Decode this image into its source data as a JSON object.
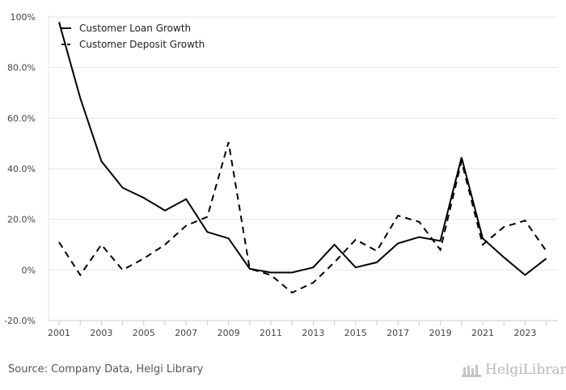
{
  "chart_data": {
    "type": "line",
    "title": "",
    "xlabel": "",
    "ylabel": "",
    "ylim": [
      -20,
      100
    ],
    "y_ticks": [
      -20,
      0,
      20,
      40,
      60,
      80,
      100
    ],
    "y_tick_labels": [
      "-20.0%",
      "0%",
      "20.0%",
      "40.0%",
      "60.0%",
      "80.0%",
      "100%"
    ],
    "x": [
      2001,
      2002,
      2003,
      2004,
      2005,
      2006,
      2007,
      2008,
      2009,
      2010,
      2011,
      2012,
      2013,
      2014,
      2015,
      2016,
      2017,
      2018,
      2019,
      2020,
      2021,
      2022,
      2023,
      2024
    ],
    "x_tick_labels": [
      "2001",
      "2003",
      "2005",
      "2007",
      "2009",
      "2011",
      "2013",
      "2015",
      "2017",
      "2019",
      "2021",
      "2023"
    ],
    "legend_position": "top-left",
    "grid": true,
    "series": [
      {
        "name": "Customer Loan Growth",
        "style": "solid",
        "color": "#000000",
        "values": [
          98.0,
          68.0,
          43.0,
          32.5,
          28.5,
          23.5,
          28.0,
          15.0,
          12.5,
          0.5,
          -1.0,
          -1.0,
          1.0,
          10.0,
          1.0,
          3.0,
          10.5,
          13.0,
          11.5,
          44.5,
          12.5,
          5.0,
          -2.0,
          4.5
        ]
      },
      {
        "name": "Customer Deposit Growth",
        "style": "dashed",
        "color": "#000000",
        "values": [
          11.0,
          -2.0,
          10.0,
          0.0,
          4.5,
          10.0,
          17.5,
          21.0,
          50.5,
          0.5,
          -2.0,
          -9.0,
          -5.0,
          3.0,
          12.0,
          7.5,
          21.5,
          19.0,
          8.0,
          43.0,
          10.0,
          17.0,
          19.5,
          7.5
        ]
      }
    ]
  },
  "footer": {
    "source": "Source: Company Data, Helgi Library",
    "brand": "HelgiLibrary"
  }
}
